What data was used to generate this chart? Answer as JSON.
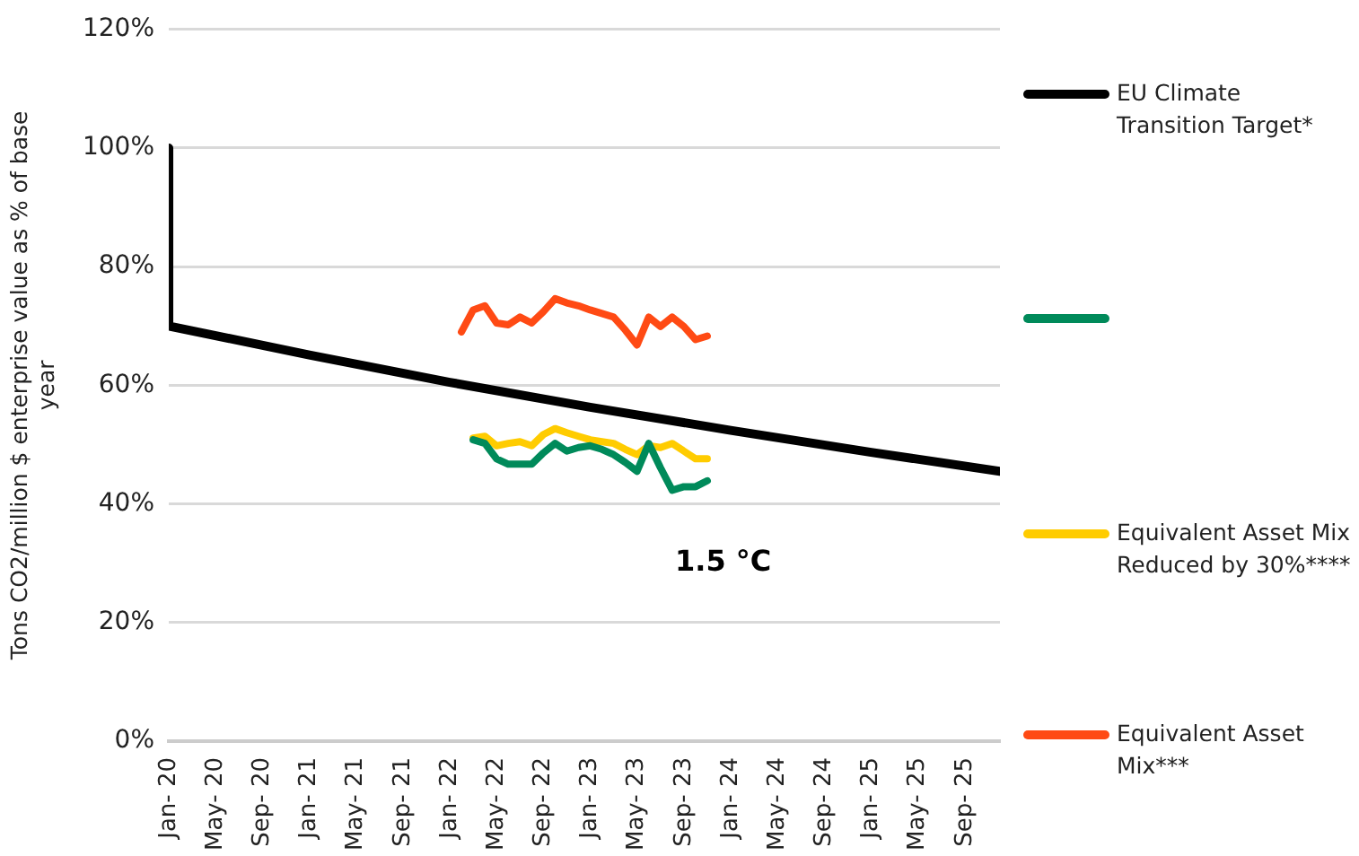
{
  "chart_data": {
    "type": "line",
    "ylabel": "Tons CO2/million $ enterprise value as % of base year",
    "x": [
      "2022-02",
      "2022-03",
      "2022-04",
      "2022-05",
      "2022-06",
      "2022-07",
      "2022-08",
      "2022-09",
      "2022-10",
      "2022-11",
      "2022-12",
      "2023-01",
      "2023-02",
      "2023-03",
      "2023-04",
      "2023-05",
      "2023-06",
      "2023-07",
      "2023-08",
      "2023-09",
      "2023-10",
      "2023-11"
    ],
    "series": [
      {
        "name": "EU Climate Transition Target*",
        "color": "#000000",
        "x": [
          "2020-01",
          "2020-01",
          "2021-01",
          "2022-01",
          "2023-01",
          "2024-01",
          "2025-01",
          "2025-12"
        ],
        "values": [
          100,
          70,
          65.1,
          60.5,
          56.3,
          52.4,
          48.7,
          45.5
        ]
      },
      {
        "color": "#008a5a",
        "values": [
          null,
          50.8,
          50.2,
          47.6,
          46.7,
          46.7,
          46.7,
          48.6,
          50.2,
          48.9,
          49.5,
          49.8,
          49.2,
          48.3,
          47.0,
          45.5,
          50.2,
          46.1,
          42.3,
          42.9,
          42.9,
          43.9
        ]
      },
      {
        "name": "Equivalent Asset Mix Reduced by 30%****",
        "color": "#ffcc00",
        "values": [
          null,
          51.1,
          51.4,
          49.8,
          50.2,
          50.5,
          49.8,
          51.7,
          52.7,
          52.0,
          51.4,
          50.8,
          50.5,
          50.2,
          49.2,
          48.3,
          49.8,
          49.5,
          50.2,
          48.9,
          47.6,
          47.6
        ]
      },
      {
        "name": "Equivalent Asset Mix***",
        "color": "#ff4a14",
        "values": [
          69.0,
          72.7,
          73.4,
          70.5,
          70.2,
          71.5,
          70.5,
          72.4,
          74.6,
          73.9,
          73.4,
          72.7,
          72.1,
          71.5,
          69.3,
          66.8,
          71.5,
          69.9,
          71.5,
          69.9,
          67.7,
          68.3
        ]
      }
    ],
    "xlim": [
      "2020-01",
      "2025-12"
    ],
    "xticks": [
      {
        "value": "2020-01",
        "label": "Jan- 20"
      },
      {
        "value": "2020-05",
        "label": "May- 20"
      },
      {
        "value": "2020-09",
        "label": "Sep- 20"
      },
      {
        "value": "2021-01",
        "label": "Jan- 21"
      },
      {
        "value": "2021-05",
        "label": "May- 21"
      },
      {
        "value": "2021-09",
        "label": "Sep- 21"
      },
      {
        "value": "2022-01",
        "label": "Jan- 22"
      },
      {
        "value": "2022-05",
        "label": "May- 22"
      },
      {
        "value": "2022-09",
        "label": "Sep- 22"
      },
      {
        "value": "2023-01",
        "label": "Jan- 23"
      },
      {
        "value": "2023-05",
        "label": "May- 23"
      },
      {
        "value": "2023-09",
        "label": "Sep- 23"
      },
      {
        "value": "2024-01",
        "label": "Jan- 24"
      },
      {
        "value": "2024-05",
        "label": "May- 24"
      },
      {
        "value": "2024-09",
        "label": "Sep- 24"
      },
      {
        "value": "2025-01",
        "label": "Jan- 25"
      },
      {
        "value": "2025-05",
        "label": "May- 25"
      },
      {
        "value": "2025-09",
        "label": "Sep- 25"
      }
    ],
    "ylim": [
      0,
      120
    ],
    "yticks": [
      {
        "value": 0,
        "label": "0%"
      },
      {
        "value": 20,
        "label": "20%"
      },
      {
        "value": 40,
        "label": "40%"
      },
      {
        "value": 60,
        "label": "60%"
      },
      {
        "value": 80,
        "label": "80%"
      },
      {
        "value": 100,
        "label": "100%"
      },
      {
        "value": 120,
        "label": "120%"
      }
    ],
    "annotations": [
      "1.5 °C"
    ],
    "grid": "y",
    "legend": "right",
    "marker": "none",
    "line_style": "solid"
  }
}
